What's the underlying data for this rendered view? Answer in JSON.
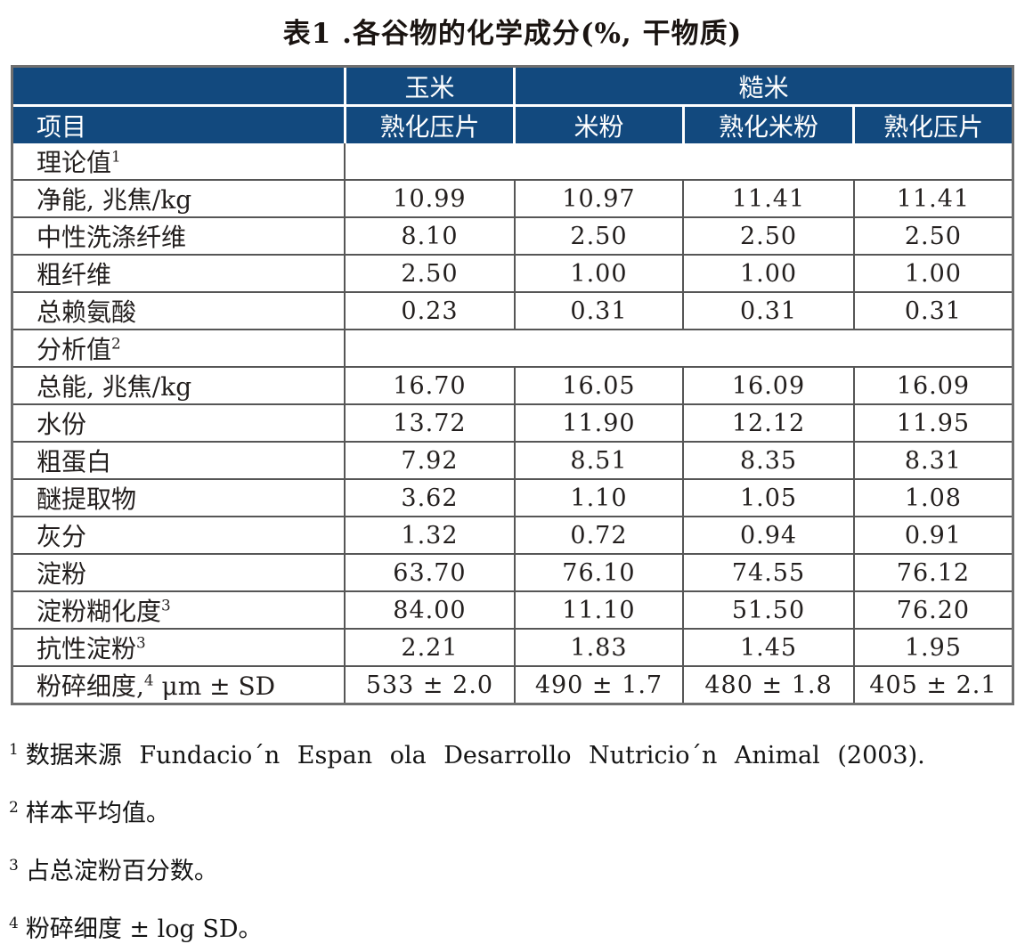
{
  "title": "表1 .各谷物的化学成分(%, 干物质)",
  "colors": {
    "header_bg": "#12497e",
    "outer_border": "#6f6f6f",
    "grid_line": "#565656",
    "text": "#231f1e"
  },
  "table": {
    "header": {
      "item_label": "项目",
      "corn_group": "玉米",
      "rice_group": "糙米",
      "sub_cols": [
        "熟化压片",
        "米粉",
        "熟化米粉",
        "熟化压片"
      ]
    },
    "rows": [
      {
        "kind": "section",
        "pre": "理论值",
        "sup": "1",
        "post": ""
      },
      {
        "kind": "data",
        "pre": "净能, 兆焦/kg",
        "sup": "",
        "post": "",
        "values": [
          "10.99",
          "10.97",
          "11.41",
          "11.41"
        ]
      },
      {
        "kind": "data",
        "pre": "中性洗涤纤维",
        "sup": "",
        "post": "",
        "values": [
          "8.10",
          "2.50",
          "2.50",
          "2.50"
        ]
      },
      {
        "kind": "data",
        "pre": "粗纤维",
        "sup": "",
        "post": "",
        "values": [
          "2.50",
          "1.00",
          "1.00",
          "1.00"
        ]
      },
      {
        "kind": "data",
        "pre": "总赖氨酸",
        "sup": "",
        "post": "",
        "values": [
          "0.23",
          "0.31",
          "0.31",
          "0.31"
        ]
      },
      {
        "kind": "section",
        "pre": "分析值",
        "sup": "2",
        "post": ""
      },
      {
        "kind": "data",
        "pre": "总能, 兆焦/kg",
        "sup": "",
        "post": "",
        "values": [
          "16.70",
          "16.05",
          "16.09",
          "16.09"
        ]
      },
      {
        "kind": "data",
        "pre": "水份",
        "sup": "",
        "post": "",
        "values": [
          "13.72",
          "11.90",
          "12.12",
          "11.95"
        ]
      },
      {
        "kind": "data",
        "pre": "粗蛋白",
        "sup": "",
        "post": "",
        "values": [
          "7.92",
          "8.51",
          "8.35",
          "8.31"
        ]
      },
      {
        "kind": "data",
        "pre": "醚提取物",
        "sup": "",
        "post": "",
        "values": [
          "3.62",
          "1.10",
          "1.05",
          "1.08"
        ]
      },
      {
        "kind": "data",
        "pre": "灰分",
        "sup": "",
        "post": "",
        "values": [
          "1.32",
          "0.72",
          "0.94",
          "0.91"
        ]
      },
      {
        "kind": "data",
        "pre": "淀粉",
        "sup": "",
        "post": "",
        "values": [
          "63.70",
          "76.10",
          "74.55",
          "76.12"
        ]
      },
      {
        "kind": "data",
        "pre": "淀粉糊化度",
        "sup": "3",
        "post": "",
        "values": [
          "84.00",
          "11.10",
          "51.50",
          "76.20"
        ]
      },
      {
        "kind": "data",
        "pre": "抗性淀粉",
        "sup": "3",
        "post": "",
        "values": [
          "2.21",
          "1.83",
          "1.45",
          "1.95"
        ]
      },
      {
        "kind": "data",
        "pre": "粉碎细度,",
        "sup": "4",
        "post": " μm ± SD",
        "values": [
          "533 ± 2.0",
          "490 ± 1.7",
          "480 ± 1.8",
          "405 ± 2.1"
        ]
      }
    ]
  },
  "footnotes": [
    {
      "sup": "1",
      "text": "数据来源 Fundacio´n Espan ola Desarrollo Nutricio´n Animal (2003)."
    },
    {
      "sup": "2",
      "text": "样本平均值。"
    },
    {
      "sup": "3",
      "text": "占总淀粉百分数。"
    },
    {
      "sup": "4",
      "text": "粉碎细度 ± log SD。"
    }
  ]
}
